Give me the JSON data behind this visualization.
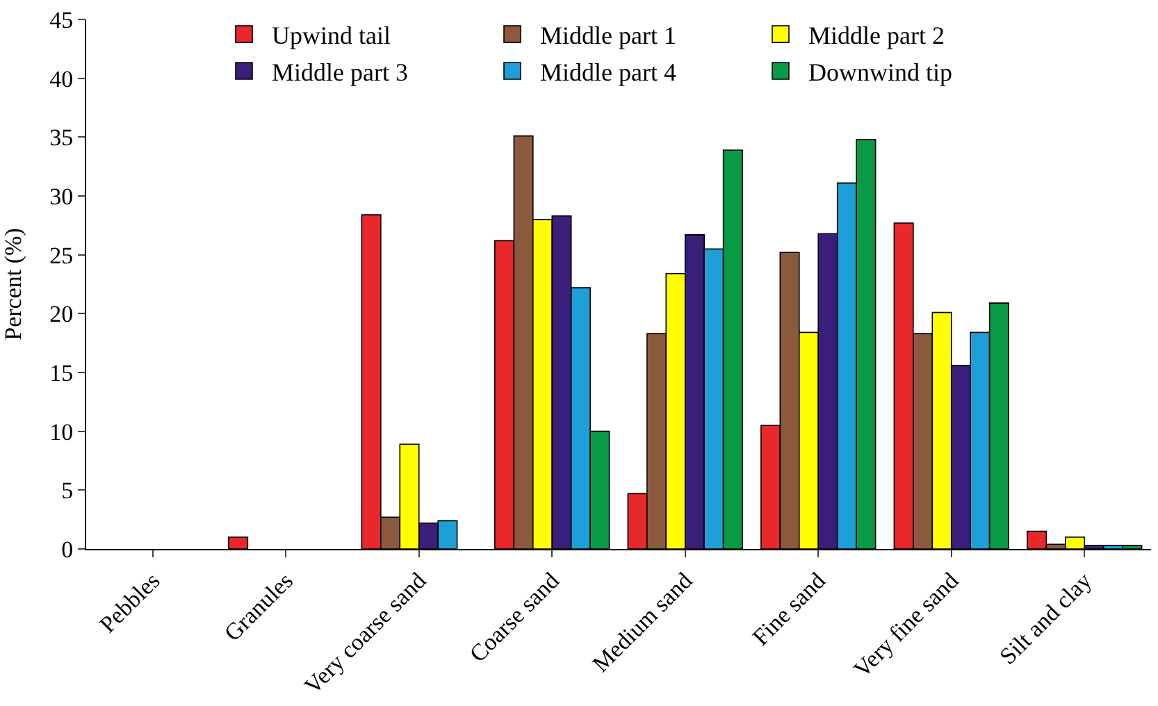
{
  "chart_data": {
    "type": "bar",
    "ylabel": "Percent (%)",
    "categories": [
      "Pebbles",
      "Granules",
      "Very coarse sand",
      "Coarse sand",
      "Medium sand",
      "Fine sand",
      "Very fine sand",
      "Silt and clay"
    ],
    "series": [
      {
        "name": "Upwind tail",
        "color": "#e8282a",
        "values": [
          null,
          1.0,
          28.4,
          26.2,
          4.7,
          10.5,
          27.7,
          1.5
        ]
      },
      {
        "name": "Middle part 1",
        "color": "#8b5a3c",
        "values": [
          null,
          null,
          2.7,
          35.1,
          18.3,
          25.2,
          18.3,
          0.4
        ]
      },
      {
        "name": "Middle part 2",
        "color": "#ffff00",
        "values": [
          null,
          null,
          8.9,
          28.0,
          23.4,
          18.4,
          20.1,
          1.0
        ]
      },
      {
        "name": "Middle part 3",
        "color": "#3a1f7a",
        "values": [
          null,
          null,
          2.2,
          28.3,
          26.7,
          26.8,
          15.6,
          0.3
        ]
      },
      {
        "name": "Middle part 4",
        "color": "#1e9fd8",
        "values": [
          null,
          null,
          2.4,
          22.2,
          25.5,
          31.1,
          18.4,
          0.3
        ]
      },
      {
        "name": "Downwind tip",
        "color": "#0a9a46",
        "values": [
          null,
          null,
          null,
          10.0,
          33.9,
          34.8,
          20.9,
          0.3
        ]
      }
    ],
    "ylim": [
      0,
      45
    ],
    "yticks": [
      0,
      5,
      10,
      15,
      20,
      25,
      30,
      35,
      40,
      45
    ],
    "legend": "top"
  }
}
